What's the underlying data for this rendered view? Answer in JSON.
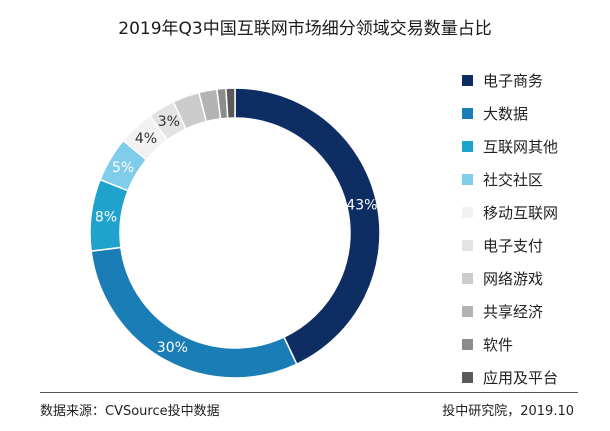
{
  "chart_data": {
    "type": "pie",
    "title": "2019年Q3中国互联网市场细分领域交易数量占比",
    "categories": [
      "电子商务",
      "大数据",
      "互联网其他",
      "社交社区",
      "移动互联网",
      "电子支付",
      "网络游戏",
      "共享经济",
      "软件",
      "应用及平台"
    ],
    "values": [
      43,
      30,
      8,
      5,
      4,
      3,
      3,
      2,
      1,
      1
    ],
    "value_labels": [
      "43%",
      "30%",
      "8%",
      "5%",
      "4%",
      "3%",
      "",
      "",
      "",
      ""
    ],
    "colors": [
      "#0e2e63",
      "#1a7db5",
      "#1fa3cc",
      "#7fcdea",
      "#f2f2f2",
      "#e3e3e3",
      "#cccccc",
      "#b3b3b3",
      "#8c8c8c",
      "#5a5a5a"
    ],
    "label_colors": [
      "#ffffff",
      "#ffffff",
      "#ffffff",
      "#ffffff",
      "#333333",
      "#333333",
      "#333333",
      "#333333",
      "#333333",
      "#333333"
    ],
    "donut": true,
    "legend_position": "right",
    "grid": false
  },
  "footer": {
    "source": "数据来源：CVSource投中数据",
    "publisher": "投中研究院，2019.10"
  }
}
